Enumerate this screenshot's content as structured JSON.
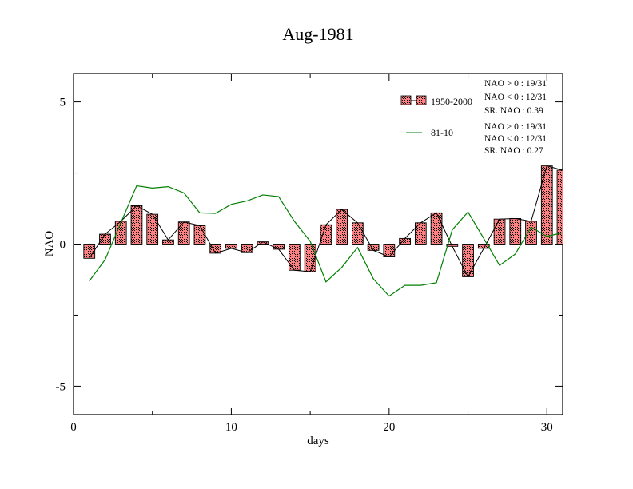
{
  "chart_data": {
    "type": "bar",
    "title": "Aug-1981",
    "xlabel": "days",
    "ylabel": "NAO",
    "xlim": [
      0,
      31
    ],
    "ylim": [
      -6,
      6
    ],
    "xticks": [
      0,
      10,
      20,
      30
    ],
    "xtick_labels": [
      "0",
      "10",
      "20",
      "30"
    ],
    "yticks": [
      -5,
      0,
      5
    ],
    "ytick_labels": [
      "-5",
      "0",
      "5"
    ],
    "grid": false,
    "legend_position": "top-right",
    "days": [
      1,
      2,
      3,
      4,
      5,
      6,
      7,
      8,
      9,
      10,
      11,
      12,
      13,
      14,
      15,
      16,
      17,
      18,
      19,
      20,
      21,
      22,
      23,
      24,
      25,
      26,
      27,
      28,
      29,
      30,
      31
    ],
    "series": [
      {
        "name": "1950-2000",
        "kind": "bar",
        "color": "#ff8080",
        "values": [
          -0.5,
          0.35,
          0.8,
          1.35,
          1.05,
          0.15,
          0.78,
          0.65,
          -0.32,
          -0.15,
          -0.3,
          0.08,
          -0.18,
          -0.92,
          -0.97,
          0.68,
          1.22,
          0.75,
          -0.22,
          -0.45,
          0.2,
          0.75,
          1.1,
          -0.08,
          -1.15,
          -0.15,
          0.88,
          0.9,
          0.8,
          2.75,
          2.6
        ]
      },
      {
        "name": "81-10",
        "kind": "line",
        "color": "#008000",
        "values": [
          -1.3,
          -0.55,
          0.75,
          2.05,
          1.97,
          2.02,
          1.8,
          1.1,
          1.08,
          1.4,
          1.52,
          1.73,
          1.67,
          0.8,
          0.1,
          -1.33,
          -0.82,
          -0.12,
          -1.22,
          -1.83,
          -1.45,
          -1.45,
          -1.36,
          0.5,
          1.13,
          0.2,
          -0.75,
          -0.35,
          0.6,
          0.27,
          0.4
        ]
      }
    ],
    "legend": [
      {
        "label": "1950-2000",
        "stats": [
          "NAO > 0 : 19/31",
          "NAO < 0 : 12/31",
          "SR. NAO :  0.39"
        ]
      },
      {
        "label": "81-10",
        "stats": [
          "NAO > 0 : 19/31",
          "NAO < 0 : 12/31",
          "SR. NAO :  0.27"
        ]
      }
    ]
  }
}
